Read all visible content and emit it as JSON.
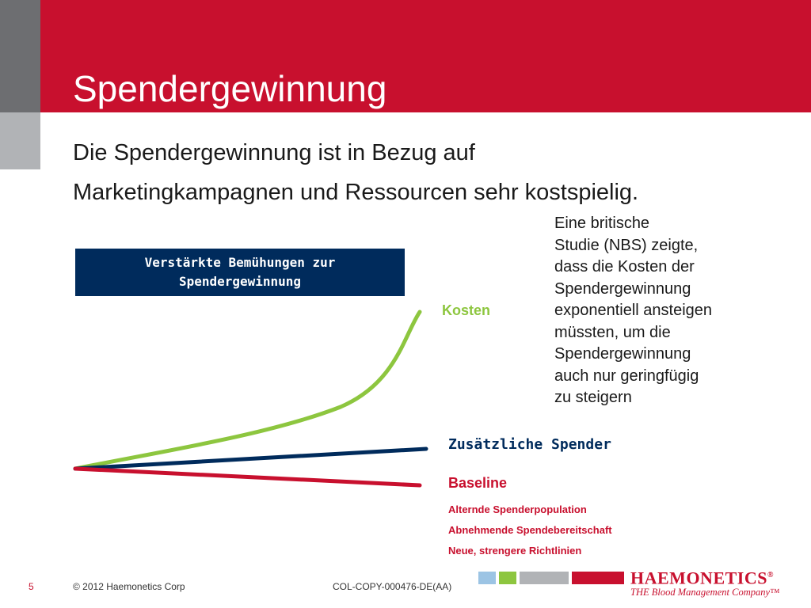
{
  "slide": {
    "title": "Spendergewinnung",
    "subtitle_lines": [
      "Die Spendergewinnung ist in Bezug auf",
      "Marketingkampagnen und Ressourcen sehr kostspielig."
    ],
    "box_lines": [
      "Verstärkte Bemühungen zur",
      "Spendergewinnung"
    ],
    "note_lines": [
      "Eine britische",
      "Studie (NBS) zeigte,",
      "dass die Kosten der",
      "Spendergewinnung",
      "exponentiell ansteigen",
      "müssten, um die",
      "Spendergewinnung",
      "auch nur geringfügig",
      "zu steigern"
    ]
  },
  "diagram": {
    "labels": {
      "kosten": "Kosten",
      "spender": "Zusätzliche Spender",
      "baseline": "Baseline"
    },
    "baseline_items": [
      "Alternde Spenderpopulation",
      "Abnehmende Spendebereitschaft",
      "Neue, strengere Richtlinien"
    ],
    "colors": {
      "kosten": "#8dc63f",
      "spender": "#002b5c",
      "baseline": "#c8102e"
    }
  },
  "footer": {
    "page_number": "5",
    "copyright": "© 2012 Haemonetics Corp",
    "doc_code": "COL-COPY-000476-DE(AA)"
  },
  "logo": {
    "name": "HAEMONETICS",
    "registered": "®",
    "tagline": "THE Blood Management Company™"
  },
  "theme": {
    "brand_red": "#c8102e",
    "navy": "#002b5c",
    "green": "#8dc63f",
    "swatches": [
      "#9cc4e4",
      "#8dc63f",
      "#b1b3b6",
      "#c8102e"
    ]
  }
}
